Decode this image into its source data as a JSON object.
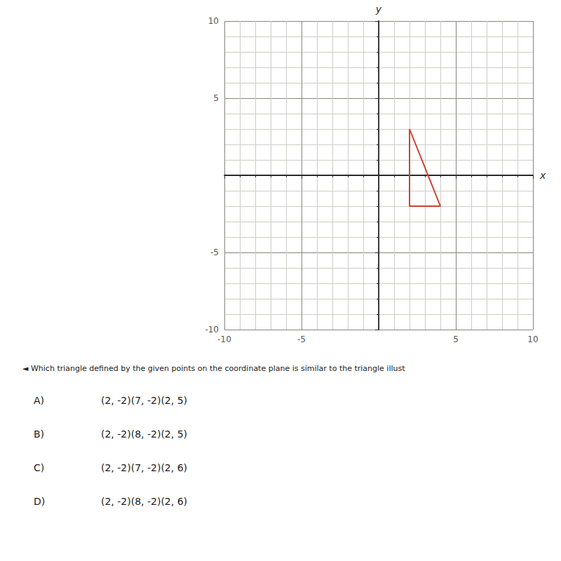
{
  "chart_data": {
    "type": "line",
    "x": [
      2,
      2,
      4,
      2
    ],
    "values": [
      3,
      -2,
      -2,
      3
    ],
    "color": "#cc4433",
    "xlim": [
      -10,
      10
    ],
    "ylim": [
      -10,
      10
    ],
    "xticks": [
      -10,
      -5,
      5,
      10
    ],
    "yticks": [
      -10,
      -5,
      5,
      10
    ],
    "x_label": "x",
    "y_label": "y",
    "grid": true,
    "question": "◄︎ Which triangle defined by the given points on the coordinate plane is similar to the triangle illust",
    "choices": [
      {
        "label": "A)",
        "text": "(2, -2)(7, -2)(2, 5)"
      },
      {
        "label": "B)",
        "text": "(2, -2)(8, -2)(2, 5)"
      },
      {
        "label": "C)",
        "text": "(2, -2)(7, -2)(2, 6)"
      },
      {
        "label": "D)",
        "text": "(2, -2)(8, -2)(2, 6)"
      }
    ]
  }
}
